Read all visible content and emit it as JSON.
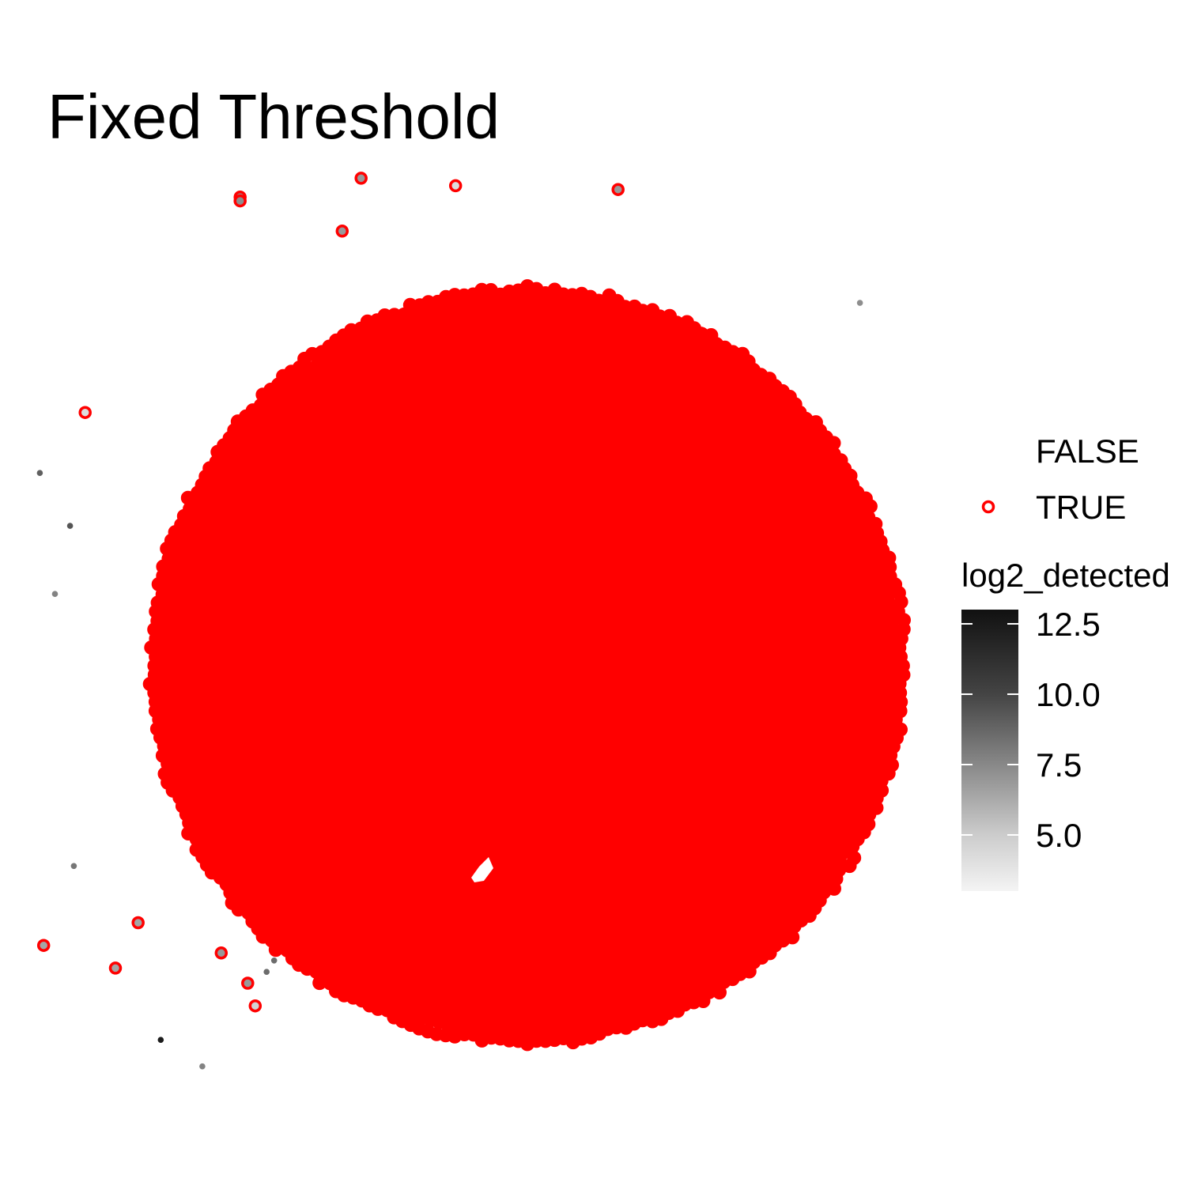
{
  "chart_data": {
    "type": "scatter",
    "title": "Fixed Threshold",
    "xlabel": "",
    "ylabel": "",
    "grid": false,
    "axes_visible": false,
    "legend_shape": {
      "entries": [
        "FALSE",
        "TRUE"
      ],
      "true_outline_color": "#ff0000"
    },
    "legend_color": {
      "title": "log2_detected",
      "ticks": [
        {
          "value": 12.5,
          "label": "12.5"
        },
        {
          "value": 10.0,
          "label": "10.0"
        },
        {
          "value": 7.5,
          "label": "7.5"
        },
        {
          "value": 5.0,
          "label": "5.0"
        }
      ],
      "range": [
        3.0,
        13.0
      ],
      "low_color": "#f4f4f4",
      "high_color": "#111111"
    },
    "main_cluster": {
      "description_shape": "dense circular cloud of points, all flagged TRUE",
      "center": [
        0.0,
        0.0
      ],
      "radius": 1.0,
      "color": "#ff0000"
    },
    "outliers": [
      {
        "x": -0.76,
        "y": 1.24,
        "flag": true,
        "log2_detected": 7.5
      },
      {
        "x": -0.76,
        "y": 1.23,
        "flag": true,
        "log2_detected": 7.5
      },
      {
        "x": -0.44,
        "y": 1.29,
        "flag": true,
        "log2_detected": 7.0
      },
      {
        "x": -0.19,
        "y": 1.27,
        "flag": true,
        "log2_detected": 4.0
      },
      {
        "x": 0.24,
        "y": 1.26,
        "flag": true,
        "log2_detected": 7.0
      },
      {
        "x": -0.49,
        "y": 1.15,
        "flag": true,
        "log2_detected": 7.0
      },
      {
        "x": 0.88,
        "y": 0.96,
        "flag": false,
        "log2_detected": 7.5
      },
      {
        "x": -1.17,
        "y": 0.67,
        "flag": true,
        "log2_detected": 4.0
      },
      {
        "x": -1.29,
        "y": 0.51,
        "flag": false,
        "log2_detected": 9.5
      },
      {
        "x": -1.21,
        "y": 0.37,
        "flag": false,
        "log2_detected": 10.0
      },
      {
        "x": -1.25,
        "y": 0.19,
        "flag": false,
        "log2_detected": 8.0
      },
      {
        "x": -1.2,
        "y": -0.53,
        "flag": false,
        "log2_detected": 8.5
      },
      {
        "x": -1.03,
        "y": -0.68,
        "flag": true,
        "log2_detected": 6.5
      },
      {
        "x": -1.28,
        "y": -0.74,
        "flag": true,
        "log2_detected": 6.5
      },
      {
        "x": -1.09,
        "y": -0.8,
        "flag": true,
        "log2_detected": 6.5
      },
      {
        "x": -0.81,
        "y": -0.76,
        "flag": true,
        "log2_detected": 7.0
      },
      {
        "x": -0.74,
        "y": -0.84,
        "flag": true,
        "log2_detected": 7.0
      },
      {
        "x": -0.72,
        "y": -0.9,
        "flag": true,
        "log2_detected": 4.5
      },
      {
        "x": -0.67,
        "y": -0.78,
        "flag": false,
        "log2_detected": 9.0
      },
      {
        "x": -0.69,
        "y": -0.81,
        "flag": false,
        "log2_detected": 9.0
      },
      {
        "x": -0.97,
        "y": -0.99,
        "flag": false,
        "log2_detected": 12.5
      },
      {
        "x": -0.86,
        "y": -1.06,
        "flag": false,
        "log2_detected": 8.0
      }
    ]
  }
}
